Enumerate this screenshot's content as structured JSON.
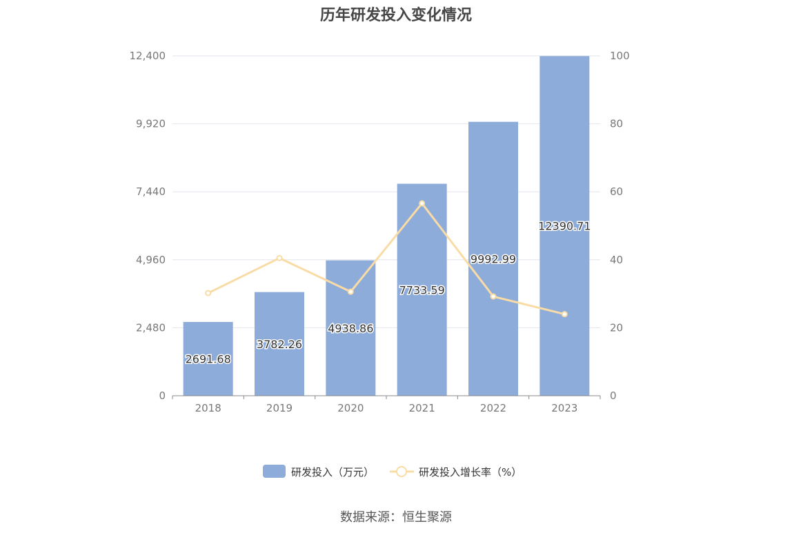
{
  "title": "历年研发投入变化情况",
  "source": "数据来源：恒生聚源",
  "colors": {
    "bar": "#8EACDA",
    "line": "#F9DCA5",
    "grid": "#E3E6EE",
    "axis": "#888888"
  },
  "chart_data": {
    "type": "bar",
    "title": "历年研发投入变化情况",
    "categories": [
      "2018",
      "2019",
      "2020",
      "2021",
      "2022",
      "2023"
    ],
    "series": [
      {
        "name": "研发投入（万元）",
        "type": "bar",
        "axis": "left",
        "values": [
          2691.68,
          3782.26,
          4938.86,
          7733.59,
          9992.99,
          12390.71
        ],
        "labels": [
          "2691.68",
          "3782.26",
          "4938.86",
          "7733.59",
          "9992.99",
          "12390.71"
        ]
      },
      {
        "name": "研发投入增长率（%）",
        "type": "line",
        "axis": "right",
        "values": [
          30.2,
          40.5,
          30.6,
          56.6,
          29.2,
          24.0
        ]
      }
    ],
    "y_left": {
      "min": 0,
      "max": 12400,
      "ticks": [
        "0",
        "2,480",
        "4,960",
        "7,440",
        "9,920",
        "12,400"
      ]
    },
    "y_right": {
      "min": 0,
      "max": 100,
      "ticks": [
        "0",
        "20",
        "40",
        "60",
        "80",
        "100"
      ]
    },
    "grid": true,
    "legend_position": "bottom"
  }
}
